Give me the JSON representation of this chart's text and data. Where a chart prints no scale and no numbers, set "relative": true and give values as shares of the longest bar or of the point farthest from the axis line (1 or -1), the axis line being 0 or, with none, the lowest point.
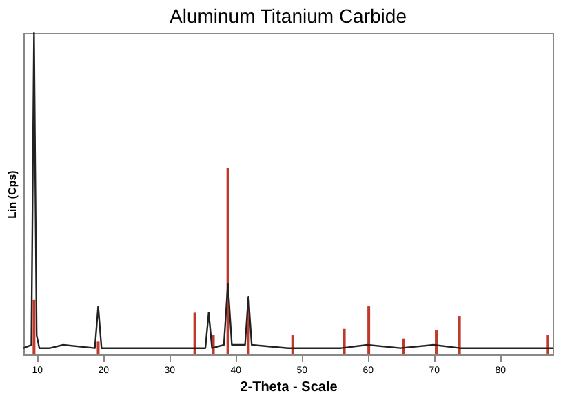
{
  "chart_data": {
    "type": "line",
    "title": "Aluminum Titanium Carbide",
    "xlabel": "2-Theta - Scale",
    "ylabel": "Lin (Cps)",
    "relative": true,
    "xlim": [
      8,
      88
    ],
    "xticks": [
      10,
      20,
      30,
      40,
      50,
      60,
      70,
      80
    ],
    "grid": false,
    "tick_labels": "x",
    "series": [
      {
        "color": "#222222",
        "x": [
          8,
          9.2,
          9.6,
          10.0,
          10.4,
          12,
          14,
          18.8,
          19.3,
          19.8,
          25,
          30,
          33.5,
          35.5,
          36,
          36.5,
          38.3,
          38.9,
          39.5,
          41.5,
          42,
          42.5,
          48,
          56,
          60,
          65,
          70,
          74,
          80,
          88
        ],
        "values": [
          0.02,
          0.03,
          1.0,
          0.06,
          0.02,
          0.02,
          0.03,
          0.02,
          0.15,
          0.02,
          0.02,
          0.02,
          0.02,
          0.02,
          0.13,
          0.02,
          0.03,
          0.22,
          0.03,
          0.03,
          0.18,
          0.03,
          0.02,
          0.02,
          0.03,
          0.02,
          0.03,
          0.02,
          0.02,
          0.02
        ]
      },
      {
        "type": "bar",
        "color": "#c0392b",
        "x": [
          9.6,
          19.3,
          33.9,
          36.7,
          38.9,
          42,
          48.7,
          56.5,
          60.2,
          65.4,
          70.4,
          73.9,
          87.2
        ],
        "values": [
          0.17,
          0.04,
          0.13,
          0.06,
          0.58,
          0.17,
          0.06,
          0.08,
          0.15,
          0.05,
          0.075,
          0.12,
          0.06
        ]
      }
    ]
  }
}
